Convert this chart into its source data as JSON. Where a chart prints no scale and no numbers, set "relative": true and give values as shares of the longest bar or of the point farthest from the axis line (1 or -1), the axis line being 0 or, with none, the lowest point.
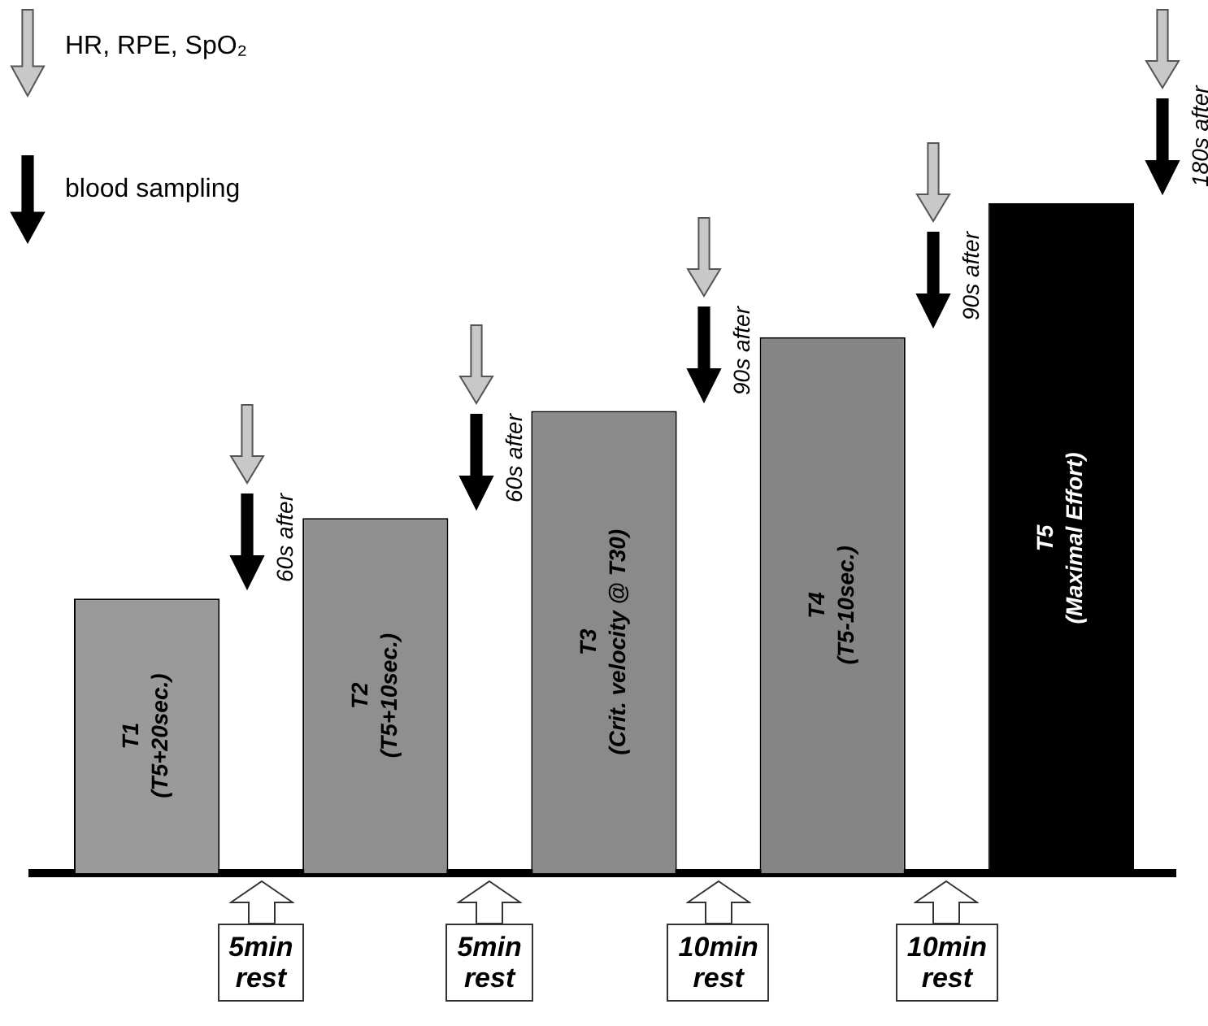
{
  "chart_data": {
    "type": "bar",
    "relative": true,
    "categories": [
      "T1\n(T5+20sec.)",
      "T2\n(T5+10sec.)",
      "T3\n(Crit. velocity @ T30)",
      "T4\n(T5-10sec.)",
      "T5\n(Maximal Effort)"
    ],
    "values": [
      0.41,
      0.53,
      0.69,
      0.8,
      1
    ],
    "colors": [
      "#9a9a9a",
      "#8f8f8f",
      "#8a8a8a",
      "#858585",
      "#000000"
    ],
    "annotations": [
      "HR, RPE, SpO₂",
      "blood sampling",
      "60s after",
      "60s after",
      "90s after",
      "90s after",
      "180s after",
      "5min\nrest",
      "5min\nrest",
      "10min\nrest",
      "10min\nrest"
    ],
    "grid": false,
    "legend": false
  }
}
